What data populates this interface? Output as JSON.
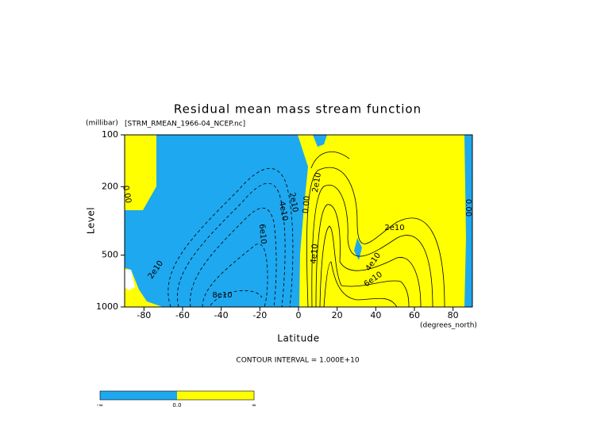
{
  "chart_data": {
    "type": "contour",
    "title": "Residual mean mass stream function",
    "subtitle": "[STRM_RMEAN_1966-04_NCEP.nc]",
    "y_unit": "(millibar)",
    "x_unit": "(degrees_north)",
    "x_label": "Latitude",
    "y_label": "Level",
    "xlim": [
      -90,
      90
    ],
    "xticks": [
      -80,
      -60,
      -40,
      -20,
      0,
      20,
      40,
      60,
      80
    ],
    "ylim": [
      1000,
      100
    ],
    "yticks": [
      100,
      200,
      500,
      1000
    ],
    "y_scale": "log",
    "note": "CONTOUR INTERVAL = 1.000E+10",
    "contour_labels": [
      "0.00",
      "2e10",
      "4e10",
      "0.00",
      "2e10",
      "6e10",
      "2e10",
      "8e10",
      "4e10",
      "2e10",
      "4e10",
      "6e10",
      "0.00"
    ],
    "colorbar": {
      "labels": [
        "-∞",
        "0.0",
        "∞"
      ],
      "colors": [
        "#1ea8f0",
        "#ffff00"
      ]
    }
  }
}
